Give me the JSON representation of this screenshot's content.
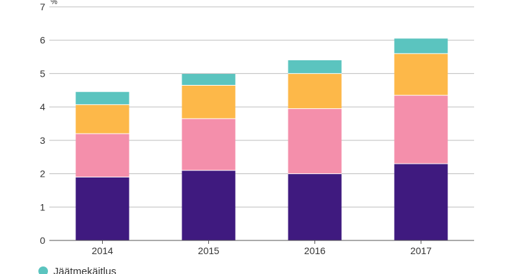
{
  "chart_data": {
    "type": "bar",
    "stacked": true,
    "unit": "%",
    "categories": [
      "2014",
      "2015",
      "2016",
      "2017"
    ],
    "ylim": [
      0,
      7
    ],
    "yticks": [
      "0",
      "1",
      "2",
      "3",
      "4",
      "5",
      "6",
      "7"
    ],
    "grid": true,
    "legend": "bottom-left",
    "series": [
      {
        "values": [
          1.9,
          2.1,
          2.0,
          2.3
        ],
        "color": "#3f1a7f"
      },
      {
        "values": [
          1.3,
          1.55,
          1.95,
          2.05
        ],
        "color": "#f48fab"
      },
      {
        "values": [
          0.87,
          1.0,
          1.05,
          1.25
        ],
        "color": "#fdb849"
      },
      {
        "name": "Jäätmekäitlus",
        "values": [
          0.38,
          0.34,
          0.4,
          0.45
        ],
        "color": "#5bc4bf"
      }
    ]
  }
}
